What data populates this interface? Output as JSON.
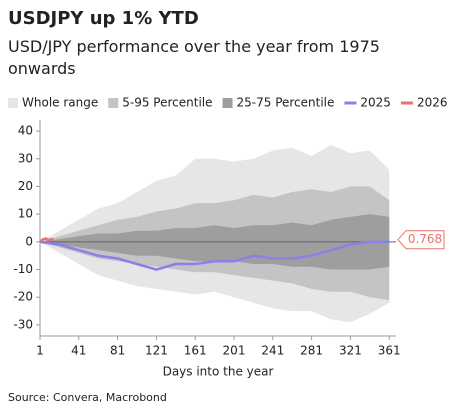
{
  "chart_data": {
    "type": "fan",
    "title": "USDJPY up 1% YTD",
    "subtitle": "USD/JPY performance over the year from 1975 onwards",
    "x_label": "Days into the year",
    "source": "Source: Convera, Macrobond",
    "x": [
      1,
      21,
      41,
      61,
      81,
      101,
      121,
      141,
      161,
      181,
      201,
      221,
      241,
      261,
      281,
      301,
      321,
      341,
      361
    ],
    "bands": [
      {
        "name": "Whole range",
        "color": "#e6e6e6",
        "low": [
          0,
          -4,
          -8,
          -12,
          -14,
          -16,
          -17,
          -18,
          -19,
          -18,
          -20,
          -22,
          -24,
          -25,
          -25,
          -28,
          -29,
          -26,
          -22
        ],
        "high": [
          0,
          4,
          8,
          12,
          14,
          18,
          22,
          24,
          30,
          30,
          29,
          30,
          33,
          34,
          31,
          35,
          32,
          33,
          26
        ]
      },
      {
        "name": "5-95 Percentile",
        "color": "#c4c4c4",
        "low": [
          0,
          -2,
          -4,
          -6,
          -7,
          -8,
          -9,
          -10,
          -11,
          -11,
          -12,
          -13,
          -14,
          -15,
          -17,
          -18,
          -18,
          -20,
          -21
        ],
        "high": [
          0,
          2,
          4,
          6,
          8,
          9,
          11,
          12,
          14,
          14,
          15,
          17,
          16,
          18,
          19,
          18,
          20,
          20,
          15
        ]
      },
      {
        "name": "25-75 Percentile",
        "color": "#9e9e9e",
        "low": [
          0,
          -1,
          -2,
          -3,
          -4,
          -5,
          -5,
          -6,
          -7,
          -7,
          -7,
          -8,
          -8,
          -9,
          -9,
          -10,
          -10,
          -10,
          -9
        ],
        "high": [
          0,
          1,
          2,
          3,
          3,
          4,
          4,
          5,
          5,
          6,
          5,
          6,
          6,
          7,
          6,
          8,
          9,
          10,
          9
        ]
      }
    ],
    "series": [
      {
        "name": "2025",
        "color": "#8b7fe8",
        "x": [
          1,
          21,
          41,
          61,
          81,
          101,
          121,
          141,
          161,
          181,
          201,
          221,
          241,
          261,
          281,
          301,
          321,
          341,
          361
        ],
        "values": [
          0,
          -1,
          -3,
          -5,
          -6,
          -8,
          -10,
          -8,
          -8,
          -7,
          -7,
          -5,
          -6,
          -6,
          -5,
          -3,
          -1,
          0,
          0
        ]
      },
      {
        "name": "2026",
        "color": "#e8736b",
        "x": [
          1,
          4,
          7,
          10,
          13,
          15
        ],
        "values": [
          0,
          0.9,
          1.2,
          0.6,
          1.0,
          0.768
        ]
      }
    ],
    "annotations": [
      {
        "value": 0.768,
        "label": "0.768"
      }
    ],
    "xlim": [
      1,
      368
    ],
    "xticks": [
      1,
      41,
      81,
      121,
      161,
      201,
      241,
      281,
      321,
      361
    ],
    "ylim": [
      -34,
      44
    ],
    "yticks": [
      -30,
      -20,
      -10,
      0,
      10,
      20,
      30,
      40
    ]
  }
}
